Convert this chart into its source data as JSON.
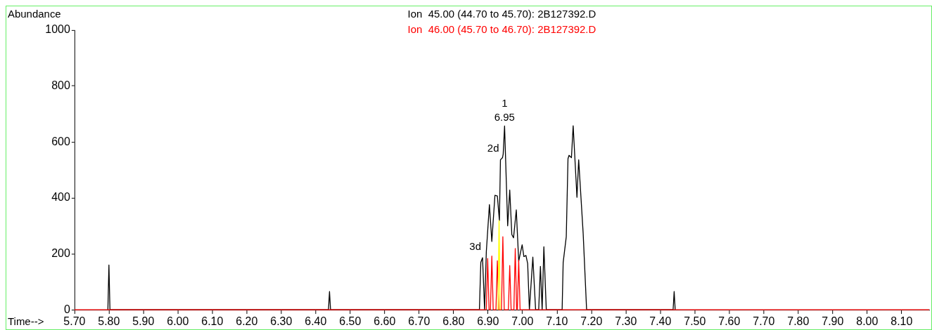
{
  "chart_data": {
    "type": "line",
    "xlabel": "Time-->",
    "ylabel": "Abundance",
    "legend": "top",
    "grid": false,
    "marker": "none",
    "line_style": "solid",
    "xlim": [
      5.7,
      8.18
    ],
    "ylim": [
      0,
      1000
    ],
    "xticks": [
      {
        "value": 5.7,
        "label": "5.70"
      },
      {
        "value": 5.8,
        "label": "5.80"
      },
      {
        "value": 5.9,
        "label": "5.90"
      },
      {
        "value": 6.0,
        "label": "6.00"
      },
      {
        "value": 6.1,
        "label": "6.10"
      },
      {
        "value": 6.2,
        "label": "6.20"
      },
      {
        "value": 6.3,
        "label": "6.30"
      },
      {
        "value": 6.4,
        "label": "6.40"
      },
      {
        "value": 6.5,
        "label": "6.50"
      },
      {
        "value": 6.6,
        "label": "6.60"
      },
      {
        "value": 6.7,
        "label": "6.70"
      },
      {
        "value": 6.8,
        "label": "6.80"
      },
      {
        "value": 6.9,
        "label": "6.90"
      },
      {
        "value": 7.0,
        "label": "7.00"
      },
      {
        "value": 7.1,
        "label": "7.10"
      },
      {
        "value": 7.2,
        "label": "7.20"
      },
      {
        "value": 7.3,
        "label": "7.30"
      },
      {
        "value": 7.4,
        "label": "7.40"
      },
      {
        "value": 7.5,
        "label": "7.50"
      },
      {
        "value": 7.6,
        "label": "7.60"
      },
      {
        "value": 7.7,
        "label": "7.70"
      },
      {
        "value": 7.8,
        "label": "7.80"
      },
      {
        "value": 7.9,
        "label": "7.90"
      },
      {
        "value": 8.0,
        "label": "8.00"
      },
      {
        "value": 8.1,
        "label": "8.10"
      }
    ],
    "yticks": [
      0,
      200,
      400,
      600,
      800,
      1000
    ],
    "series": [
      {
        "name": "Ion  45.00 (44.70 to 45.70): 2B127392.D",
        "color": "#000000",
        "x": [
          5.797,
          5.8,
          5.803,
          6.437,
          6.44,
          6.443,
          6.875,
          6.879,
          6.884,
          6.89,
          6.895,
          6.904,
          6.911,
          6.92,
          6.927,
          6.933,
          6.936,
          6.942,
          6.944,
          6.948,
          6.957,
          6.963,
          6.969,
          6.974,
          6.982,
          6.989,
          6.993,
          6.999,
          7.004,
          7.01,
          7.015,
          7.02,
          7.03,
          7.038,
          7.047,
          7.052,
          7.057,
          7.062,
          7.069,
          7.115,
          7.118,
          7.127,
          7.132,
          7.135,
          7.142,
          7.147,
          7.158,
          7.163,
          7.176,
          7.186,
          7.437,
          7.44,
          7.443
        ],
        "values": [
          0,
          160,
          0,
          0,
          65,
          0,
          0,
          169,
          186,
          0,
          207,
          376,
          244,
          409,
          407,
          319,
          536,
          544,
          557,
          657,
          300,
          428,
          269,
          257,
          357,
          173,
          198,
          232,
          190,
          194,
          165,
          0,
          188,
          0,
          0,
          155,
          0,
          225,
          0,
          0,
          169,
          261,
          540,
          552,
          544,
          658,
          402,
          536,
          273,
          0,
          0,
          65,
          0
        ]
      },
      {
        "name": "Ion  46.00 (45.70 to 46.70): 2B127392.D",
        "color": "#ff0000",
        "x": [
          5.7,
          6.895,
          6.899,
          6.903,
          6.907,
          6.911,
          6.915,
          6.923,
          6.927,
          6.931,
          6.939,
          6.943,
          6.947,
          6.959,
          6.963,
          6.967,
          6.975,
          6.979,
          6.983,
          6.985,
          6.989,
          6.993,
          8.18
        ],
        "values": [
          0,
          0,
          183,
          0,
          0,
          192,
          0,
          0,
          175,
          0,
          0,
          261,
          0,
          0,
          158,
          0,
          0,
          219,
          0,
          0,
          177,
          0,
          0
        ]
      },
      {
        "color": "#ffff00",
        "x": [
          6.929,
          6.932,
          6.935
        ],
        "values": [
          0,
          319,
          0
        ]
      }
    ],
    "annotations": [
      {
        "text": "1",
        "x": 6.948,
        "y": 657
      },
      {
        "text": "6.95",
        "x": 6.948,
        "y": 657
      },
      {
        "text": "2d",
        "x": 6.936,
        "y": 536
      },
      {
        "text": "3d",
        "x": 6.884,
        "y": 186
      }
    ]
  }
}
